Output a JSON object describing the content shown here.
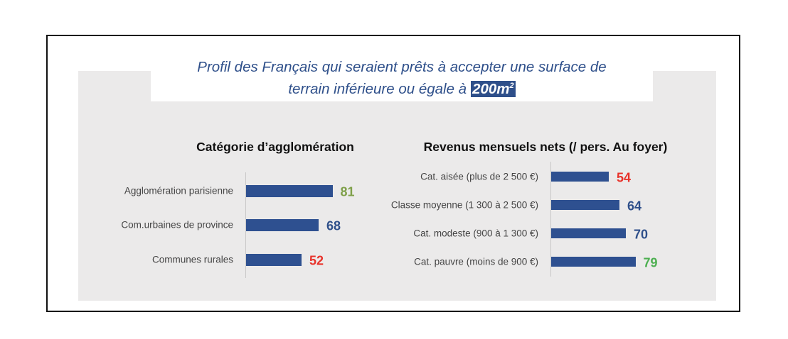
{
  "title": {
    "line1": "Profil des Français qui seraient prêts à accepter une surface de",
    "line2": "terrain inférieure ou égale à",
    "highlight": "200m",
    "highlight_sup": "2"
  },
  "chart_data": [
    {
      "type": "bar",
      "orientation": "horizontal",
      "title": "Catégorie d’agglomération",
      "categories": [
        "Agglomération parisienne",
        "Com.urbaines de province",
        "Communes rurales"
      ],
      "values": [
        81,
        68,
        52
      ],
      "value_colors": [
        "#7fa04a",
        "#2e4f8a",
        "#e8322a"
      ],
      "bar_color": "#2e5090"
    },
    {
      "type": "bar",
      "orientation": "horizontal",
      "title": "Revenus mensuels nets (/ pers. Au foyer)",
      "categories": [
        "Cat. aisée (plus de 2 500 €)",
        "Classe moyenne (1 300 à 2 500 €)",
        "Cat. modeste (900 à 1 300 €)",
        "Cat. pauvre (moins de 900 €)"
      ],
      "values": [
        54,
        64,
        70,
        79
      ],
      "value_colors": [
        "#e8322a",
        "#2e4f8a",
        "#2e4f8a",
        "#4caf50"
      ],
      "bar_color": "#2e5090"
    }
  ]
}
